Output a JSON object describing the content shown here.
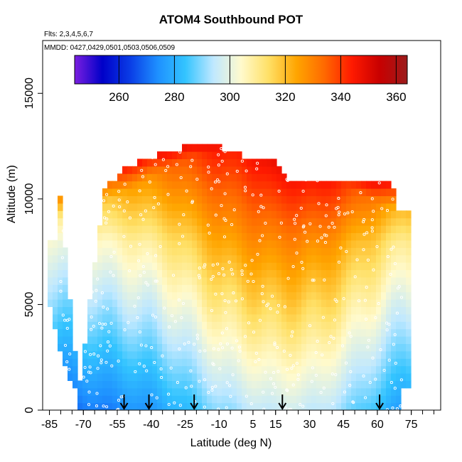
{
  "chart_data": {
    "type": "heatmap",
    "title": "ATOM4 Southbound POT",
    "flights_text": "Flts: 2,3,4,5,6,7",
    "mmdd_text": "MMDD: 0427,0429,0501,0503,0506,0509",
    "xlabel": "Latitude (deg N)",
    "ylabel": "Altitude (m)",
    "xlim": [
      -88,
      88
    ],
    "ylim": [
      0,
      17500
    ],
    "x_ticks": [
      -85,
      -70,
      -55,
      -40,
      -25,
      -10,
      5,
      15,
      30,
      45,
      60,
      75
    ],
    "y_ticks": [
      0,
      5000,
      10000,
      15000
    ],
    "colorbar": {
      "range": [
        244,
        364
      ],
      "ticks": [
        260,
        280,
        300,
        320,
        340,
        360
      ],
      "colors": [
        "#7b1fe0",
        "#0000c8",
        "#0a3de6",
        "#1e90ff",
        "#33c4ff",
        "#bfe8ff",
        "#fffacd",
        "#ffe066",
        "#ffa500",
        "#ff6a00",
        "#ff1a00",
        "#c80000",
        "#9b1c1c"
      ]
    },
    "arrows_lat": [
      -52,
      -41,
      -21,
      18,
      61
    ],
    "grid": false,
    "legend": "colorbar-top",
    "profiles": [
      {
        "lat": -72,
        "top": 1000,
        "base": 270
      },
      {
        "lat": -80,
        "top": 10000,
        "base": 268
      },
      {
        "lat": -60,
        "top": 11000,
        "base": 272
      },
      {
        "lat": -40,
        "top": 12000,
        "base": 276
      },
      {
        "lat": -25,
        "top": 12500,
        "base": 282
      },
      {
        "lat": -10,
        "top": 12500,
        "base": 290
      },
      {
        "lat": 5,
        "top": 11800,
        "base": 294
      },
      {
        "lat": 15,
        "top": 11800,
        "base": 296
      },
      {
        "lat": 20,
        "top": 11000,
        "base": 296
      },
      {
        "lat": 35,
        "top": 11000,
        "base": 295
      },
      {
        "lat": 50,
        "top": 11000,
        "base": 288
      },
      {
        "lat": 65,
        "top": 11000,
        "base": 280
      },
      {
        "lat": 72,
        "top": 9500,
        "base": 276
      }
    ]
  }
}
